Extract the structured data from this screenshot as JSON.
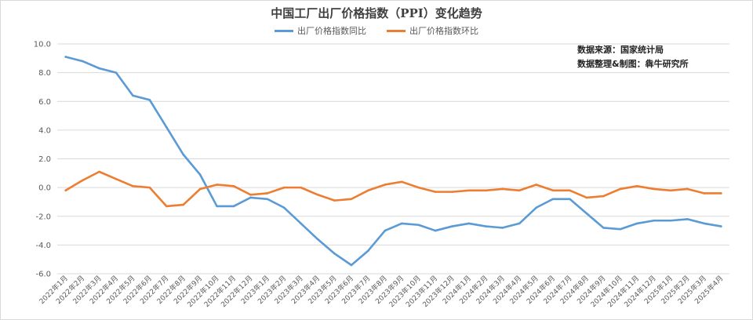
{
  "chart_data": {
    "type": "line",
    "title": "中国工厂出厂价格指数（PPI）变化趋势",
    "xlabel": "",
    "ylabel": "",
    "ylim": [
      -6.0,
      10.0
    ],
    "yticks": [
      -6.0,
      -4.0,
      -2.0,
      0.0,
      2.0,
      4.0,
      6.0,
      8.0,
      10.0
    ],
    "ytick_labels": [
      "-6.0",
      "-4.0",
      "-2.0",
      "0.0",
      "2.0",
      "4.0",
      "6.0",
      "8.0",
      "10.0"
    ],
    "grid": "horizontal",
    "legend_position": "top-center",
    "categories": [
      "2022年1月",
      "2022年2月",
      "2022年3月",
      "2022年4月",
      "2022年5月",
      "2022年6月",
      "2022年7月",
      "2022年8月",
      "2022年9月",
      "2022年10月",
      "2022年11月",
      "2022年12月",
      "2023年1月",
      "2023年2月",
      "2023年3月",
      "2023年4月",
      "2023年5月",
      "2023年6月",
      "2023年7月",
      "2023年8月",
      "2023年9月",
      "2023年10月",
      "2023年11月",
      "2023年12月",
      "2024年1月",
      "2024年2月",
      "2024年3月",
      "2024年4月",
      "2024年5月",
      "2024年6月",
      "2024年7月",
      "2024年8月",
      "2024年9月",
      "2024年10月",
      "2024年11月",
      "2024年12月",
      "2025年1月",
      "2025年2月",
      "2025年3月",
      "2025年4月"
    ],
    "series": [
      {
        "name": "出厂价格指数同比",
        "color": "#5b9bd5",
        "values": [
          9.1,
          8.8,
          8.3,
          8.0,
          6.4,
          6.1,
          4.2,
          2.3,
          0.9,
          -1.3,
          -1.3,
          -0.7,
          -0.8,
          -1.4,
          -2.5,
          -3.6,
          -4.6,
          -5.4,
          -4.4,
          -3.0,
          -2.5,
          -2.6,
          -3.0,
          -2.7,
          -2.5,
          -2.7,
          -2.8,
          -2.5,
          -1.4,
          -0.8,
          -0.8,
          -1.8,
          -2.8,
          -2.9,
          -2.5,
          -2.3,
          -2.3,
          -2.2,
          -2.5,
          -2.7
        ]
      },
      {
        "name": "出厂价格指数环比",
        "color": "#ed7d31",
        "values": [
          -0.2,
          0.5,
          1.1,
          0.6,
          0.1,
          0.0,
          -1.3,
          -1.2,
          -0.1,
          0.2,
          0.1,
          -0.5,
          -0.4,
          0.0,
          0.0,
          -0.5,
          -0.9,
          -0.8,
          -0.2,
          0.2,
          0.4,
          0.0,
          -0.3,
          -0.3,
          -0.2,
          -0.2,
          -0.1,
          -0.2,
          0.2,
          -0.2,
          -0.2,
          -0.7,
          -0.6,
          -0.1,
          0.1,
          -0.1,
          -0.2,
          -0.1,
          -0.4,
          -0.4
        ]
      }
    ]
  },
  "notes": {
    "source": "数据来源：国家统计局",
    "credit": "数据整理&制图：犇牛研究所"
  }
}
